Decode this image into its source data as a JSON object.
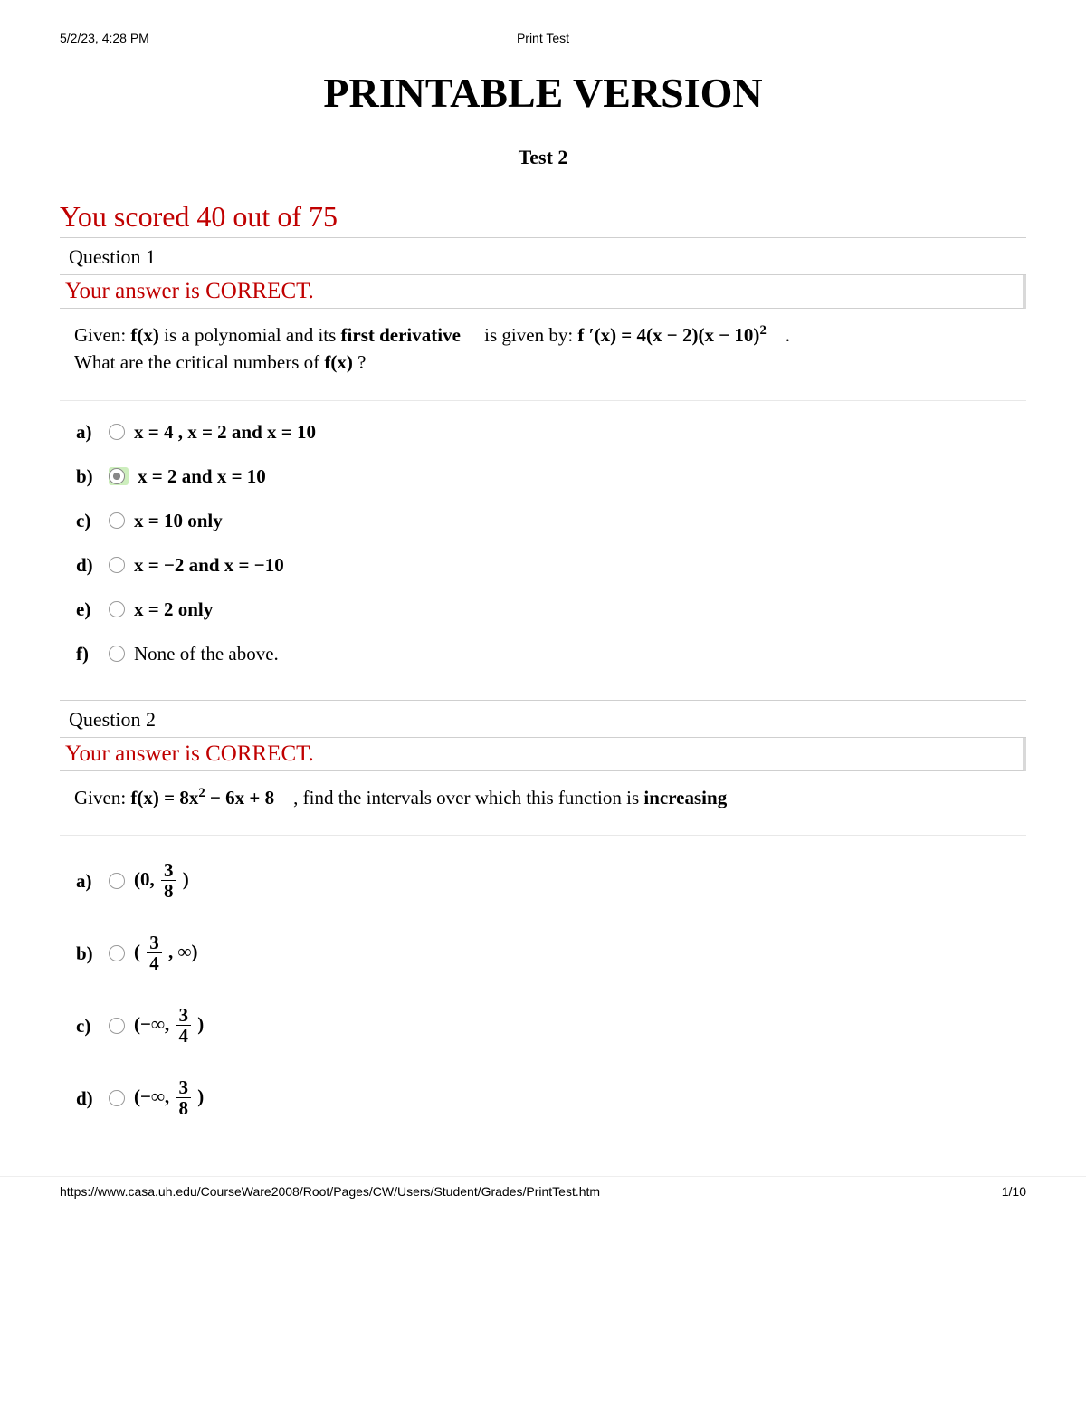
{
  "header": {
    "date": "5/2/23, 4:28 PM",
    "title": "Print Test"
  },
  "page": {
    "main_title": "PRINTABLE VERSION",
    "test_label": "Test 2",
    "score_text": "You scored 40 out of 75",
    "score_color": "#c00000"
  },
  "q1": {
    "heading": "Question 1",
    "feedback": "Your answer is CORRECT.",
    "feedback_color": "#c00000",
    "prompt": {
      "pre": "Given: ",
      "fx": "f(x)",
      "mid1": " is a polynomial and its ",
      "fd": "first derivative",
      "mid2": " is given by: ",
      "deriv": "f ′(x) = 4(x − 2)(x − 10)",
      "deriv_sup": "2",
      "tail": " .",
      "line2a": "What are the critical numbers of ",
      "line2b": "f(x)",
      "line2c": "  ?"
    },
    "highlight_color": "#cdeebd",
    "options": {
      "a": {
        "letter": "a)",
        "text": "x = 4 , x = 2  and x = 10",
        "selected": false,
        "correct": false
      },
      "b": {
        "letter": "b)",
        "text": "x = 2  and x = 10",
        "selected": true,
        "correct": true
      },
      "c": {
        "letter": "c)",
        "text": "x = 10   only",
        "selected": false,
        "correct": false
      },
      "d": {
        "letter": "d)",
        "text": "x = −2   and x = −10",
        "selected": false,
        "correct": false
      },
      "e": {
        "letter": "e)",
        "text": "x = 2   only",
        "selected": false,
        "correct": false
      },
      "f": {
        "letter": "f)",
        "text": "None of the above.",
        "selected": false,
        "correct": false
      }
    }
  },
  "q2": {
    "heading": "Question 2",
    "feedback": "Your answer is CORRECT.",
    "feedback_color": "#c00000",
    "prompt": {
      "pre": "Given: ",
      "expr_a": "f(x) = 8x",
      "expr_sup": "2",
      "expr_b": " − 6x + 8",
      "mid": " , find the intervals over which this function is ",
      "inc": "increasing"
    },
    "options": {
      "a": {
        "letter": "a)",
        "open": "(0,",
        "num": "3",
        "den": "8",
        "close": ")"
      },
      "b": {
        "letter": "b)",
        "open": "(",
        "num": "3",
        "den": "4",
        "close": ", ∞)"
      },
      "c": {
        "letter": "c)",
        "open": "(−∞,",
        "num": "3",
        "den": "4",
        "close": ")"
      },
      "d": {
        "letter": "d)",
        "open": "(−∞,",
        "num": "3",
        "den": "8",
        "close": ")"
      }
    }
  },
  "footer": {
    "url": "https://www.casa.uh.edu/CourseWare2008/Root/Pages/CW/Users/Student/Grades/PrintTest.htm",
    "page_no": "1/10"
  }
}
